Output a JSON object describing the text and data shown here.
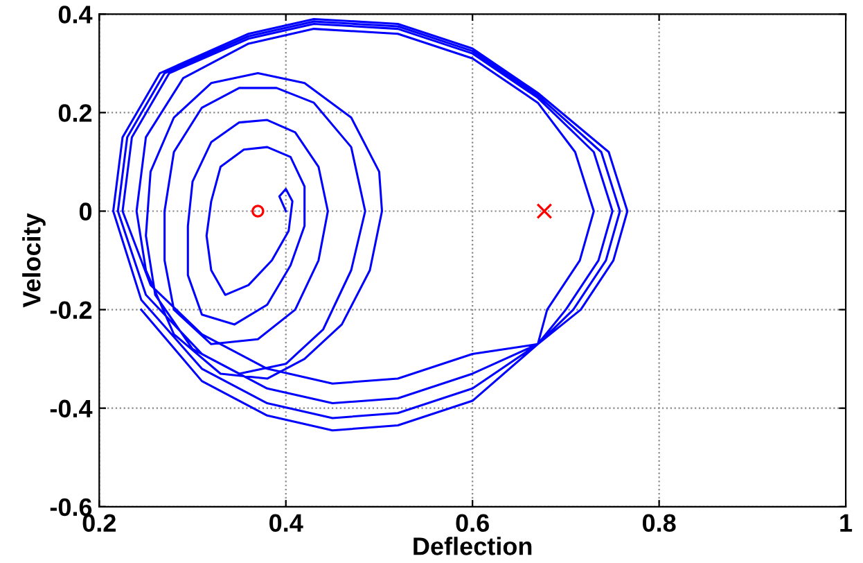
{
  "chart_data": {
    "type": "line",
    "xlabel": "Deflection",
    "ylabel": "Velocity",
    "xlim": [
      0.2,
      1
    ],
    "ylim": [
      -0.6,
      0.4
    ],
    "xticks": [
      0.2,
      0.4,
      0.6,
      0.8,
      1
    ],
    "yticks": [
      -0.6,
      -0.4,
      -0.2,
      0,
      0.2,
      0.4
    ],
    "grid": true,
    "marker": "none",
    "line_style": "solid",
    "series": [
      {
        "color": "#0000ff",
        "x": [
          0.4,
          0.393,
          0.4,
          0.407,
          0.403,
          0.385,
          0.36,
          0.335,
          0.32,
          0.315,
          0.32,
          0.33,
          0.355,
          0.38,
          0.405,
          0.42,
          0.42,
          0.405,
          0.38,
          0.345,
          0.31,
          0.295,
          0.295,
          0.3,
          0.32,
          0.35,
          0.38,
          0.41,
          0.435,
          0.445,
          0.435,
          0.41,
          0.37,
          0.32,
          0.28,
          0.27,
          0.27,
          0.28,
          0.31,
          0.35,
          0.39,
          0.43,
          0.47,
          0.485,
          0.47,
          0.44,
          0.4,
          0.35,
          0.3,
          0.26,
          0.25,
          0.255,
          0.28,
          0.32,
          0.37,
          0.42,
          0.47,
          0.5,
          0.503,
          0.49,
          0.46,
          0.42,
          0.38,
          0.33,
          0.28,
          0.25,
          0.24,
          0.25,
          0.29,
          0.36,
          0.43,
          0.52,
          0.6,
          0.67,
          0.71,
          0.73,
          0.715,
          0.68,
          0.67,
          0.6,
          0.52,
          0.45,
          0.38,
          0.31,
          0.255,
          0.225,
          0.235,
          0.275,
          0.36,
          0.43,
          0.52,
          0.6,
          0.67,
          0.73,
          0.75,
          0.735,
          0.7,
          0.67,
          0.6,
          0.52,
          0.45,
          0.38,
          0.31,
          0.25,
          0.22,
          0.23,
          0.27,
          0.36,
          0.43,
          0.52,
          0.6,
          0.67,
          0.738,
          0.758,
          0.743,
          0.708,
          0.67,
          0.6,
          0.52,
          0.45,
          0.38,
          0.31,
          0.245,
          0.215,
          0.225,
          0.265,
          0.36,
          0.43,
          0.52,
          0.6,
          0.67,
          0.746,
          0.766,
          0.751,
          0.716,
          0.67,
          0.6,
          0.52,
          0.45,
          0.38,
          0.31,
          0.245
        ],
        "values": [
          0.0,
          0.03,
          0.045,
          0.02,
          -0.04,
          -0.1,
          -0.15,
          -0.17,
          -0.12,
          -0.05,
          0.02,
          0.09,
          0.125,
          0.13,
          0.11,
          0.05,
          -0.03,
          -0.11,
          -0.19,
          -0.23,
          -0.21,
          -0.13,
          -0.03,
          0.06,
          0.14,
          0.18,
          0.185,
          0.16,
          0.09,
          0.0,
          -0.1,
          -0.2,
          -0.26,
          -0.27,
          -0.2,
          -0.1,
          0.0,
          0.12,
          0.21,
          0.25,
          0.25,
          0.22,
          0.13,
          0.0,
          -0.12,
          -0.24,
          -0.31,
          -0.33,
          -0.28,
          -0.17,
          -0.05,
          0.08,
          0.19,
          0.26,
          0.28,
          0.26,
          0.19,
          0.08,
          0.0,
          -0.12,
          -0.23,
          -0.3,
          -0.34,
          -0.33,
          -0.25,
          -0.12,
          0.0,
          0.15,
          0.27,
          0.34,
          0.37,
          0.36,
          0.31,
          0.22,
          0.12,
          0.0,
          -0.1,
          -0.2,
          -0.27,
          -0.29,
          -0.34,
          -0.35,
          -0.32,
          -0.25,
          -0.15,
          0.0,
          0.15,
          0.28,
          0.35,
          0.38,
          0.37,
          0.32,
          0.23,
          0.12,
          0.0,
          -0.1,
          -0.2,
          -0.27,
          -0.33,
          -0.38,
          -0.39,
          -0.36,
          -0.29,
          -0.17,
          0.0,
          0.15,
          0.28,
          0.355,
          0.385,
          0.375,
          0.325,
          0.235,
          0.12,
          0.0,
          -0.1,
          -0.2,
          -0.27,
          -0.36,
          -0.41,
          -0.42,
          -0.39,
          -0.32,
          -0.18,
          0.0,
          0.15,
          0.28,
          0.36,
          0.39,
          0.38,
          0.33,
          0.24,
          0.12,
          0.0,
          -0.1,
          -0.2,
          -0.27,
          -0.385,
          -0.435,
          -0.445,
          -0.415,
          -0.345,
          -0.2
        ]
      },
      {
        "type": "scatter",
        "marker": "circle",
        "color": "#ff0000",
        "x": [
          0.37
        ],
        "values": [
          0
        ]
      },
      {
        "type": "scatter",
        "marker": "cross",
        "color": "#ff0000",
        "x": [
          0.677
        ],
        "values": [
          0
        ]
      }
    ]
  }
}
